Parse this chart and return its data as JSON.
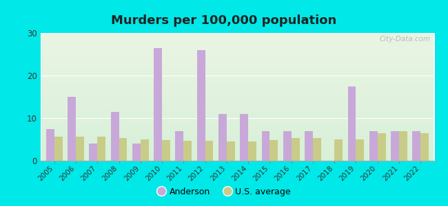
{
  "title": "Murders per 100,000 population",
  "years": [
    2005,
    2006,
    2007,
    2008,
    2009,
    2010,
    2011,
    2012,
    2013,
    2014,
    2015,
    2016,
    2017,
    2018,
    2019,
    2020,
    2021,
    2022
  ],
  "anderson": [
    7.5,
    15.0,
    4.0,
    11.5,
    4.0,
    26.5,
    7.0,
    26.0,
    11.0,
    11.0,
    7.0,
    7.0,
    7.0,
    0.0,
    17.5,
    7.0,
    7.0,
    7.0
  ],
  "us_avg": [
    5.6,
    5.7,
    5.6,
    5.4,
    5.0,
    4.8,
    4.7,
    4.7,
    4.5,
    4.5,
    4.9,
    5.4,
    5.3,
    5.0,
    5.0,
    6.5,
    6.9,
    6.5
  ],
  "anderson_color": "#c8a8d8",
  "us_avg_color": "#c8cc88",
  "outer_bg": "#00e8e8",
  "bg_top": "#eaf5e4",
  "bg_bottom": "#d8f0d8",
  "ylim": [
    0,
    30
  ],
  "yticks": [
    0,
    10,
    20,
    30
  ],
  "title_fontsize": 13,
  "watermark": "City-Data.com",
  "legend_anderson": "Anderson",
  "legend_us": "U.S. average"
}
